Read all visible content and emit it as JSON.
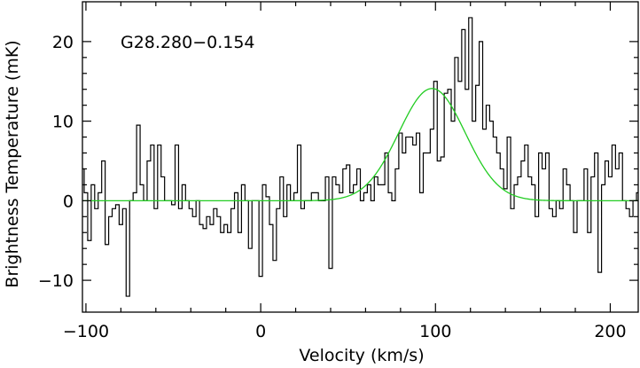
{
  "chart_data": {
    "type": "line",
    "title": "",
    "annotation": "G28.280−0.154",
    "xlabel": "Velocity (km/s)",
    "ylabel": "Brightness Temperature (mK)",
    "xlim": [
      -102,
      216
    ],
    "ylim": [
      -14,
      25
    ],
    "xticks_major": [
      -100,
      0,
      100,
      200
    ],
    "xtick_labels": [
      "−100",
      "0",
      "100",
      "200"
    ],
    "yticks_major": [
      -10,
      0,
      10,
      20
    ],
    "ytick_labels": [
      "−10",
      "0",
      "10",
      "20"
    ],
    "grid": false,
    "series": [
      {
        "style": "step",
        "color": "#000000",
        "x_start": -102,
        "x_step": 2,
        "values": [
          4,
          1,
          -5,
          2,
          -1,
          1,
          5,
          -5.5,
          -2,
          -1,
          -0.5,
          -3,
          -1,
          -12,
          0,
          1,
          9.5,
          2,
          0,
          5,
          7,
          -1,
          7,
          3,
          0,
          0,
          -0.5,
          7,
          -1,
          2,
          0,
          -1,
          -2,
          0,
          -3,
          -3.5,
          -2,
          -3,
          -1,
          -2,
          -4,
          -3,
          -4,
          -1,
          1,
          -4,
          2,
          0,
          -6,
          0,
          0,
          -9.5,
          2,
          0.5,
          -3,
          -7.5,
          -1,
          3,
          -2,
          2,
          0,
          1,
          7,
          -1,
          0,
          0,
          1,
          1,
          0,
          0,
          3,
          -8.5,
          3,
          2,
          1,
          4,
          4.5,
          1,
          2,
          4,
          0,
          1,
          2,
          0,
          3,
          2,
          2,
          6,
          1,
          0,
          4,
          8.5,
          6,
          8,
          8,
          7,
          8.5,
          1,
          6,
          6,
          9,
          15,
          5,
          5.5,
          13.5,
          14,
          10,
          18,
          15,
          21.5,
          14,
          23,
          10,
          14.5,
          20,
          9,
          12,
          10,
          8,
          6,
          4,
          1.5,
          8,
          -1,
          2,
          3,
          5,
          7,
          3,
          2,
          -2,
          6,
          4,
          6,
          -1,
          -2,
          0,
          -1,
          4,
          2,
          0,
          -4,
          0,
          0,
          4,
          -4,
          3,
          6,
          -9,
          2,
          5,
          3,
          7,
          4,
          6,
          0,
          -1,
          -2,
          0,
          1,
          0,
          3,
          0,
          4,
          -1,
          4,
          -1,
          2,
          0,
          2,
          -3,
          4,
          3,
          0,
          -3,
          -4,
          -2,
          -7,
          0,
          2,
          -6,
          -8,
          4,
          3,
          1,
          -2,
          1,
          1,
          0,
          -1,
          -9,
          4,
          3,
          1,
          -5,
          1,
          0,
          0
        ]
      },
      {
        "style": "gaussian-fit",
        "color": "#22cc22",
        "amplitude": 14.1,
        "center": 98,
        "sigma": 19
      }
    ]
  }
}
